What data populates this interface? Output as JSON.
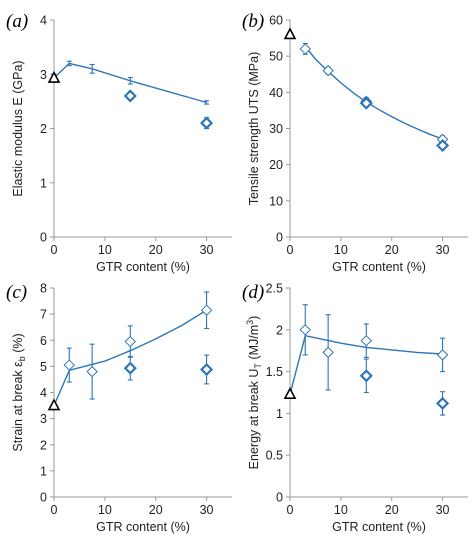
{
  "colors": {
    "series": "#2E75B6",
    "reference": "#000000",
    "axis": "#9a9a9a"
  },
  "chart_data": [
    {
      "type": "scatter",
      "panel_label": "(a)",
      "xlabel": "GTR content (%)",
      "ylabel": "Elastic modulus E (GPa)",
      "xlim": [
        0,
        35
      ],
      "ylim": [
        0,
        4
      ],
      "xticks": [
        0,
        10,
        20,
        30
      ],
      "yticks": [
        0,
        1,
        2,
        3,
        4
      ],
      "grid": false,
      "reference": {
        "x": 0,
        "y": 2.93,
        "err": 0.07
      },
      "series": [
        {
          "marker": "open-diamond",
          "x": [
            3,
            7.5,
            15,
            30
          ],
          "y": [
            3.2,
            3.1,
            2.88,
            2.48
          ],
          "err": [
            0.04,
            0.08,
            0.06,
            0.03
          ],
          "marker_shown": [
            false,
            false,
            false,
            false
          ]
        },
        {
          "marker": "bold-diamond",
          "x": [
            15,
            30
          ],
          "y": [
            2.6,
            2.1
          ],
          "err": [
            0.06,
            0.1
          ]
        }
      ],
      "trend": {
        "x": [
          0,
          3,
          7.5,
          15,
          30
        ],
        "y": [
          2.93,
          3.2,
          3.1,
          2.88,
          2.48
        ]
      }
    },
    {
      "type": "scatter",
      "panel_label": "(b)",
      "xlabel": "GTR content (%)",
      "ylabel": "Tensile strength UTS (MPa)",
      "xlim": [
        0,
        35
      ],
      "ylim": [
        0,
        60
      ],
      "xticks": [
        0,
        10,
        20,
        30
      ],
      "yticks": [
        0,
        10,
        20,
        30,
        40,
        50,
        60
      ],
      "grid": false,
      "reference": {
        "x": 0,
        "y": 56,
        "err": 0
      },
      "series": [
        {
          "marker": "open-diamond",
          "x": [
            3,
            7.5,
            15,
            30
          ],
          "y": [
            52,
            46,
            37.5,
            27
          ],
          "err": [
            1.5,
            1,
            1,
            1
          ]
        },
        {
          "marker": "bold-diamond",
          "x": [
            15,
            30
          ],
          "y": [
            37,
            25.3
          ],
          "err": [
            0.8,
            0.8
          ]
        }
      ],
      "trend": {
        "x": [
          3,
          5,
          7.5,
          10,
          12.5,
          15,
          17.5,
          20,
          22.5,
          25,
          27.5,
          30
        ],
        "y": [
          52.7,
          49.2,
          45.8,
          42.6,
          39.8,
          37.3,
          35.2,
          33.3,
          31.5,
          29.9,
          28.4,
          27.1
        ]
      }
    },
    {
      "type": "scatter",
      "panel_label": "(c)",
      "xlabel": "GTR content (%)",
      "ylabel": "Strain at break εₕ (%)",
      "ylabel_main": "Strain at break ε",
      "ylabel_sub": "b",
      "ylabel_tail": " (%)",
      "xlim": [
        0,
        35
      ],
      "ylim": [
        0,
        8
      ],
      "xticks": [
        0,
        10,
        20,
        30
      ],
      "yticks": [
        0,
        1,
        2,
        3,
        4,
        5,
        6,
        7,
        8
      ],
      "grid": false,
      "reference": {
        "x": 0,
        "y": 3.5,
        "err": 0
      },
      "series": [
        {
          "marker": "open-diamond",
          "x": [
            3,
            7.5,
            15,
            30
          ],
          "y": [
            5.05,
            4.8,
            5.95,
            7.15
          ],
          "err": [
            0.65,
            1.05,
            0.6,
            0.7
          ]
        },
        {
          "marker": "bold-diamond",
          "x": [
            15,
            30
          ],
          "y": [
            4.93,
            4.88
          ],
          "err": [
            0.45,
            0.55
          ]
        }
      ],
      "trend": {
        "x": [
          0,
          3,
          10,
          15,
          20,
          25,
          30
        ],
        "y": [
          3.5,
          4.85,
          5.2,
          5.6,
          6.05,
          6.55,
          7.15
        ]
      }
    },
    {
      "type": "scatter",
      "panel_label": "(d)",
      "xlabel": "GTR content (%)",
      "ylabel": "Energy at break Uₜ (MJ/m³)",
      "ylabel_main": "Energy at break U",
      "ylabel_sub": "T",
      "ylabel_tail": " (MJ/m",
      "ylabel_sup": "3",
      "ylabel_end": ")",
      "xlim": [
        0,
        35
      ],
      "ylim": [
        0,
        2.5
      ],
      "xticks": [
        0,
        10,
        20,
        30
      ],
      "yticks": [
        0,
        0.5,
        1,
        1.5,
        2,
        2.5
      ],
      "ytick_labels": [
        "0",
        "0.5",
        "1",
        "1.5",
        "2",
        "2.5"
      ],
      "grid": false,
      "reference": {
        "x": 0,
        "y": 1.23,
        "err": 0
      },
      "series": [
        {
          "marker": "open-diamond",
          "x": [
            3,
            7.5,
            15,
            30
          ],
          "y": [
            2.0,
            1.73,
            1.87,
            1.7
          ],
          "err": [
            0.3,
            0.45,
            0.2,
            0.2
          ]
        },
        {
          "marker": "bold-diamond",
          "x": [
            15,
            30
          ],
          "y": [
            1.45,
            1.12
          ],
          "err": [
            0.2,
            0.14
          ]
        }
      ],
      "trend": {
        "x": [
          0,
          3,
          10,
          15,
          20,
          25,
          30
        ],
        "y": [
          1.23,
          1.93,
          1.84,
          1.79,
          1.76,
          1.73,
          1.71
        ]
      }
    }
  ]
}
